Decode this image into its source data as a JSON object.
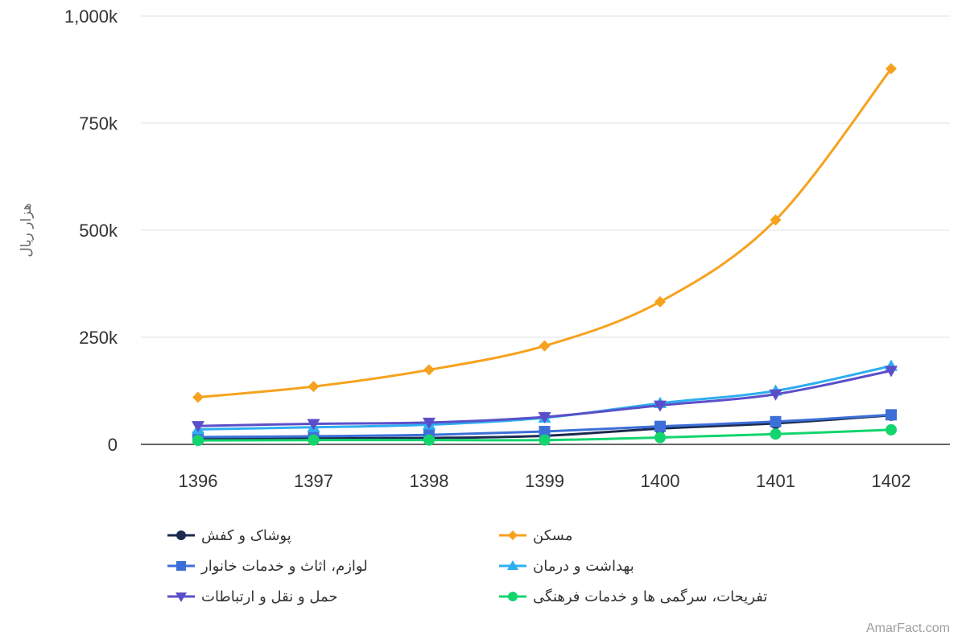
{
  "chart_data": {
    "type": "line",
    "title": "",
    "xlabel": "",
    "ylabel": "هزار ریال",
    "categories": [
      "1396",
      "1397",
      "1398",
      "1399",
      "1400",
      "1401",
      "1402"
    ],
    "ylim": [
      0,
      1000000
    ],
    "yticks": [
      {
        "value": 0,
        "label": "0"
      },
      {
        "value": 250000,
        "label": "250k"
      },
      {
        "value": 500000,
        "label": "500k"
      },
      {
        "value": 750000,
        "label": "750k"
      },
      {
        "value": 1000000,
        "label": "1,000k"
      }
    ],
    "grid": true,
    "legend_position": "bottom",
    "series": [
      {
        "name": "پوشاک و کفش",
        "color": "#1b2a4e",
        "marker": "circle",
        "values": [
          12000,
          14000,
          15000,
          20000,
          37000,
          49000,
          68000
        ]
      },
      {
        "name": "مسکن",
        "color": "#f6a21e",
        "marker": "diamond",
        "values": [
          110000,
          135000,
          174000,
          230000,
          333000,
          524000,
          877000
        ]
      },
      {
        "name": "لوازم، اثاث و خدمات خانوار",
        "color": "#3d6fd8",
        "marker": "square",
        "values": [
          17000,
          19000,
          22000,
          30000,
          42000,
          53000,
          69000
        ]
      },
      {
        "name": "بهداشت و درمان",
        "color": "#2eaef0",
        "marker": "triangle-up",
        "values": [
          35000,
          40000,
          46000,
          62000,
          96000,
          125000,
          183000
        ]
      },
      {
        "name": "حمل و نقل و ارتباطات",
        "color": "#5b4fc9",
        "marker": "triangle-down",
        "values": [
          43000,
          48000,
          51000,
          64000,
          91000,
          117000,
          172000
        ]
      },
      {
        "name": "تفریحات، سرگمی ها و خدمات فرهنگی",
        "color": "#12d56e",
        "marker": "circle",
        "values": [
          9000,
          10000,
          10000,
          10000,
          16000,
          24000,
          34000
        ]
      }
    ]
  },
  "watermark": "AmarFact.com"
}
